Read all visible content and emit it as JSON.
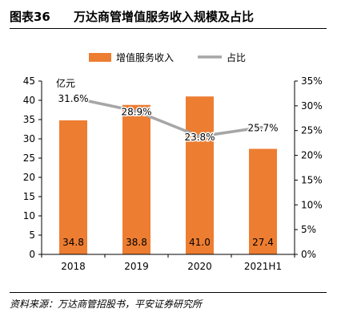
{
  "figure": {
    "number": "图表36",
    "title": "万达商管增值服务收入规模及占比",
    "source": "资料来源：万达商管招股书，平安证券研究所"
  },
  "colors": {
    "bar": "#ED7D31",
    "line": "#A6A6A6",
    "axis": "#595959"
  },
  "chart_data": {
    "type": "bar",
    "categories": [
      "2018",
      "2019",
      "2020",
      "2021H1"
    ],
    "series": [
      {
        "name": "增值服务收入",
        "type": "bar",
        "axis": "left",
        "values": [
          34.8,
          38.8,
          41.0,
          27.4
        ],
        "labels": [
          "34.8",
          "38.8",
          "41.0",
          "27.4"
        ]
      },
      {
        "name": "占比",
        "type": "line",
        "axis": "right",
        "values": [
          31.6,
          28.9,
          23.8,
          25.7
        ],
        "labels": [
          "31.6%",
          "28.9%",
          "23.8%",
          "25.7%"
        ]
      }
    ],
    "y_left": {
      "min": 0,
      "max": 45,
      "step": 5,
      "unit_label": "亿元",
      "ticks": [
        "0",
        "5",
        "10",
        "15",
        "20",
        "25",
        "30",
        "35",
        "40",
        "45"
      ]
    },
    "y_right": {
      "min": 0,
      "max": 35,
      "step": 5,
      "ticks": [
        "0%",
        "5%",
        "10%",
        "15%",
        "20%",
        "25%",
        "30%",
        "35%"
      ]
    },
    "legend": {
      "position": "top",
      "items": [
        "增值服务收入",
        "占比"
      ]
    },
    "grid": false
  }
}
